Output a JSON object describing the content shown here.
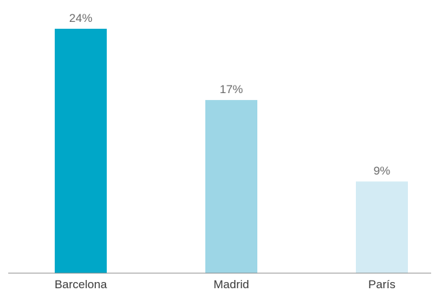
{
  "chart_data": {
    "type": "bar",
    "categories": [
      "Barcelona",
      "Madrid",
      "París"
    ],
    "values": [
      24,
      17,
      9
    ],
    "value_labels": [
      "24%",
      "17%",
      "9%"
    ],
    "colors": [
      "#00a7c8",
      "#9dd6e6",
      "#d3ebf4"
    ],
    "ylim": [
      0,
      25
    ],
    "title": "",
    "xlabel": "",
    "ylabel": "",
    "grid": false,
    "legend": "none"
  },
  "style": {
    "axis_color": "#888888"
  }
}
